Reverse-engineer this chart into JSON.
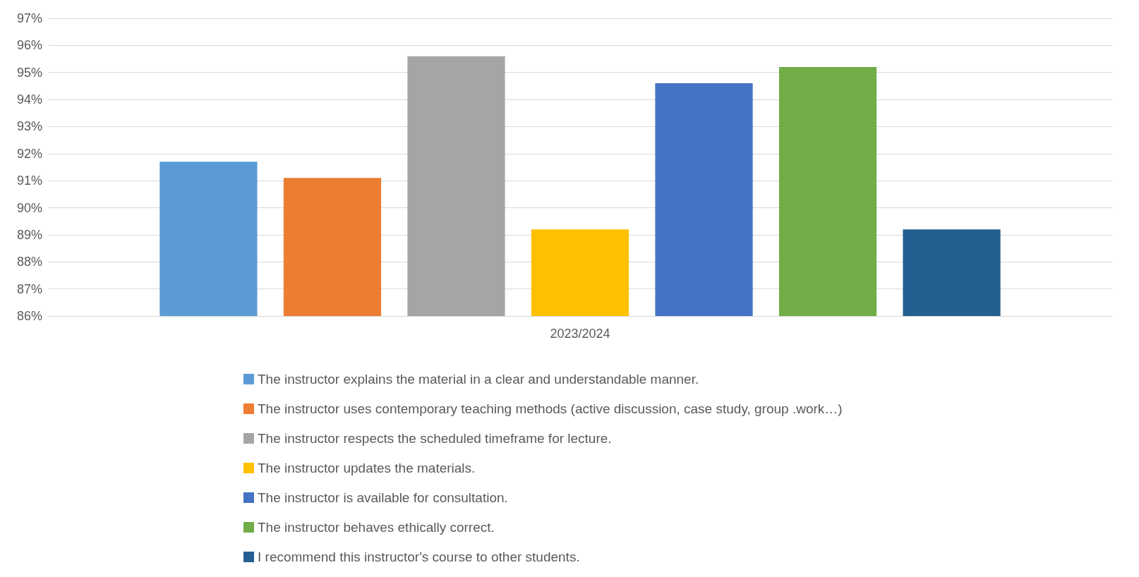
{
  "chart_data": {
    "type": "bar",
    "categories": [
      "2023/2024"
    ],
    "series": [
      {
        "name": "The instructor explains the material in a clear and understandable manner.",
        "color": "#5b9bd5",
        "values": [
          91.7
        ]
      },
      {
        "name": "The instructor uses contemporary teaching methods (active discussion, case study, group .work…)",
        "color": "#ed7d31",
        "values": [
          91.1
        ]
      },
      {
        "name": "The instructor respects the scheduled timeframe for lecture.",
        "color": "#a5a5a5",
        "values": [
          95.6
        ]
      },
      {
        "name": "The instructor updates the materials.",
        "color": "#ffc000",
        "values": [
          89.2
        ]
      },
      {
        "name": "The instructor is available for consultation.",
        "color": "#4472c4",
        "values": [
          94.6
        ]
      },
      {
        "name": "The instructor behaves ethically correct.",
        "color": "#70ad47",
        "values": [
          95.2
        ]
      },
      {
        "name": "I recommend this instructor's course to other students.",
        "color": "#255e91",
        "values": [
          89.2
        ]
      }
    ],
    "ylim": [
      86,
      97
    ],
    "yticks": [
      {
        "value": 86,
        "label": "86%"
      },
      {
        "value": 87,
        "label": "87%"
      },
      {
        "value": 88,
        "label": "88%"
      },
      {
        "value": 89,
        "label": "89%"
      },
      {
        "value": 90,
        "label": "90%"
      },
      {
        "value": 91,
        "label": "91%"
      },
      {
        "value": 92,
        "label": "92%"
      },
      {
        "value": 93,
        "label": "93%"
      },
      {
        "value": 94,
        "label": "94%"
      },
      {
        "value": 95,
        "label": "95%"
      },
      {
        "value": 96,
        "label": "96%"
      },
      {
        "value": 97,
        "label": "97%"
      }
    ],
    "grid": "y",
    "legend": "bottom"
  }
}
